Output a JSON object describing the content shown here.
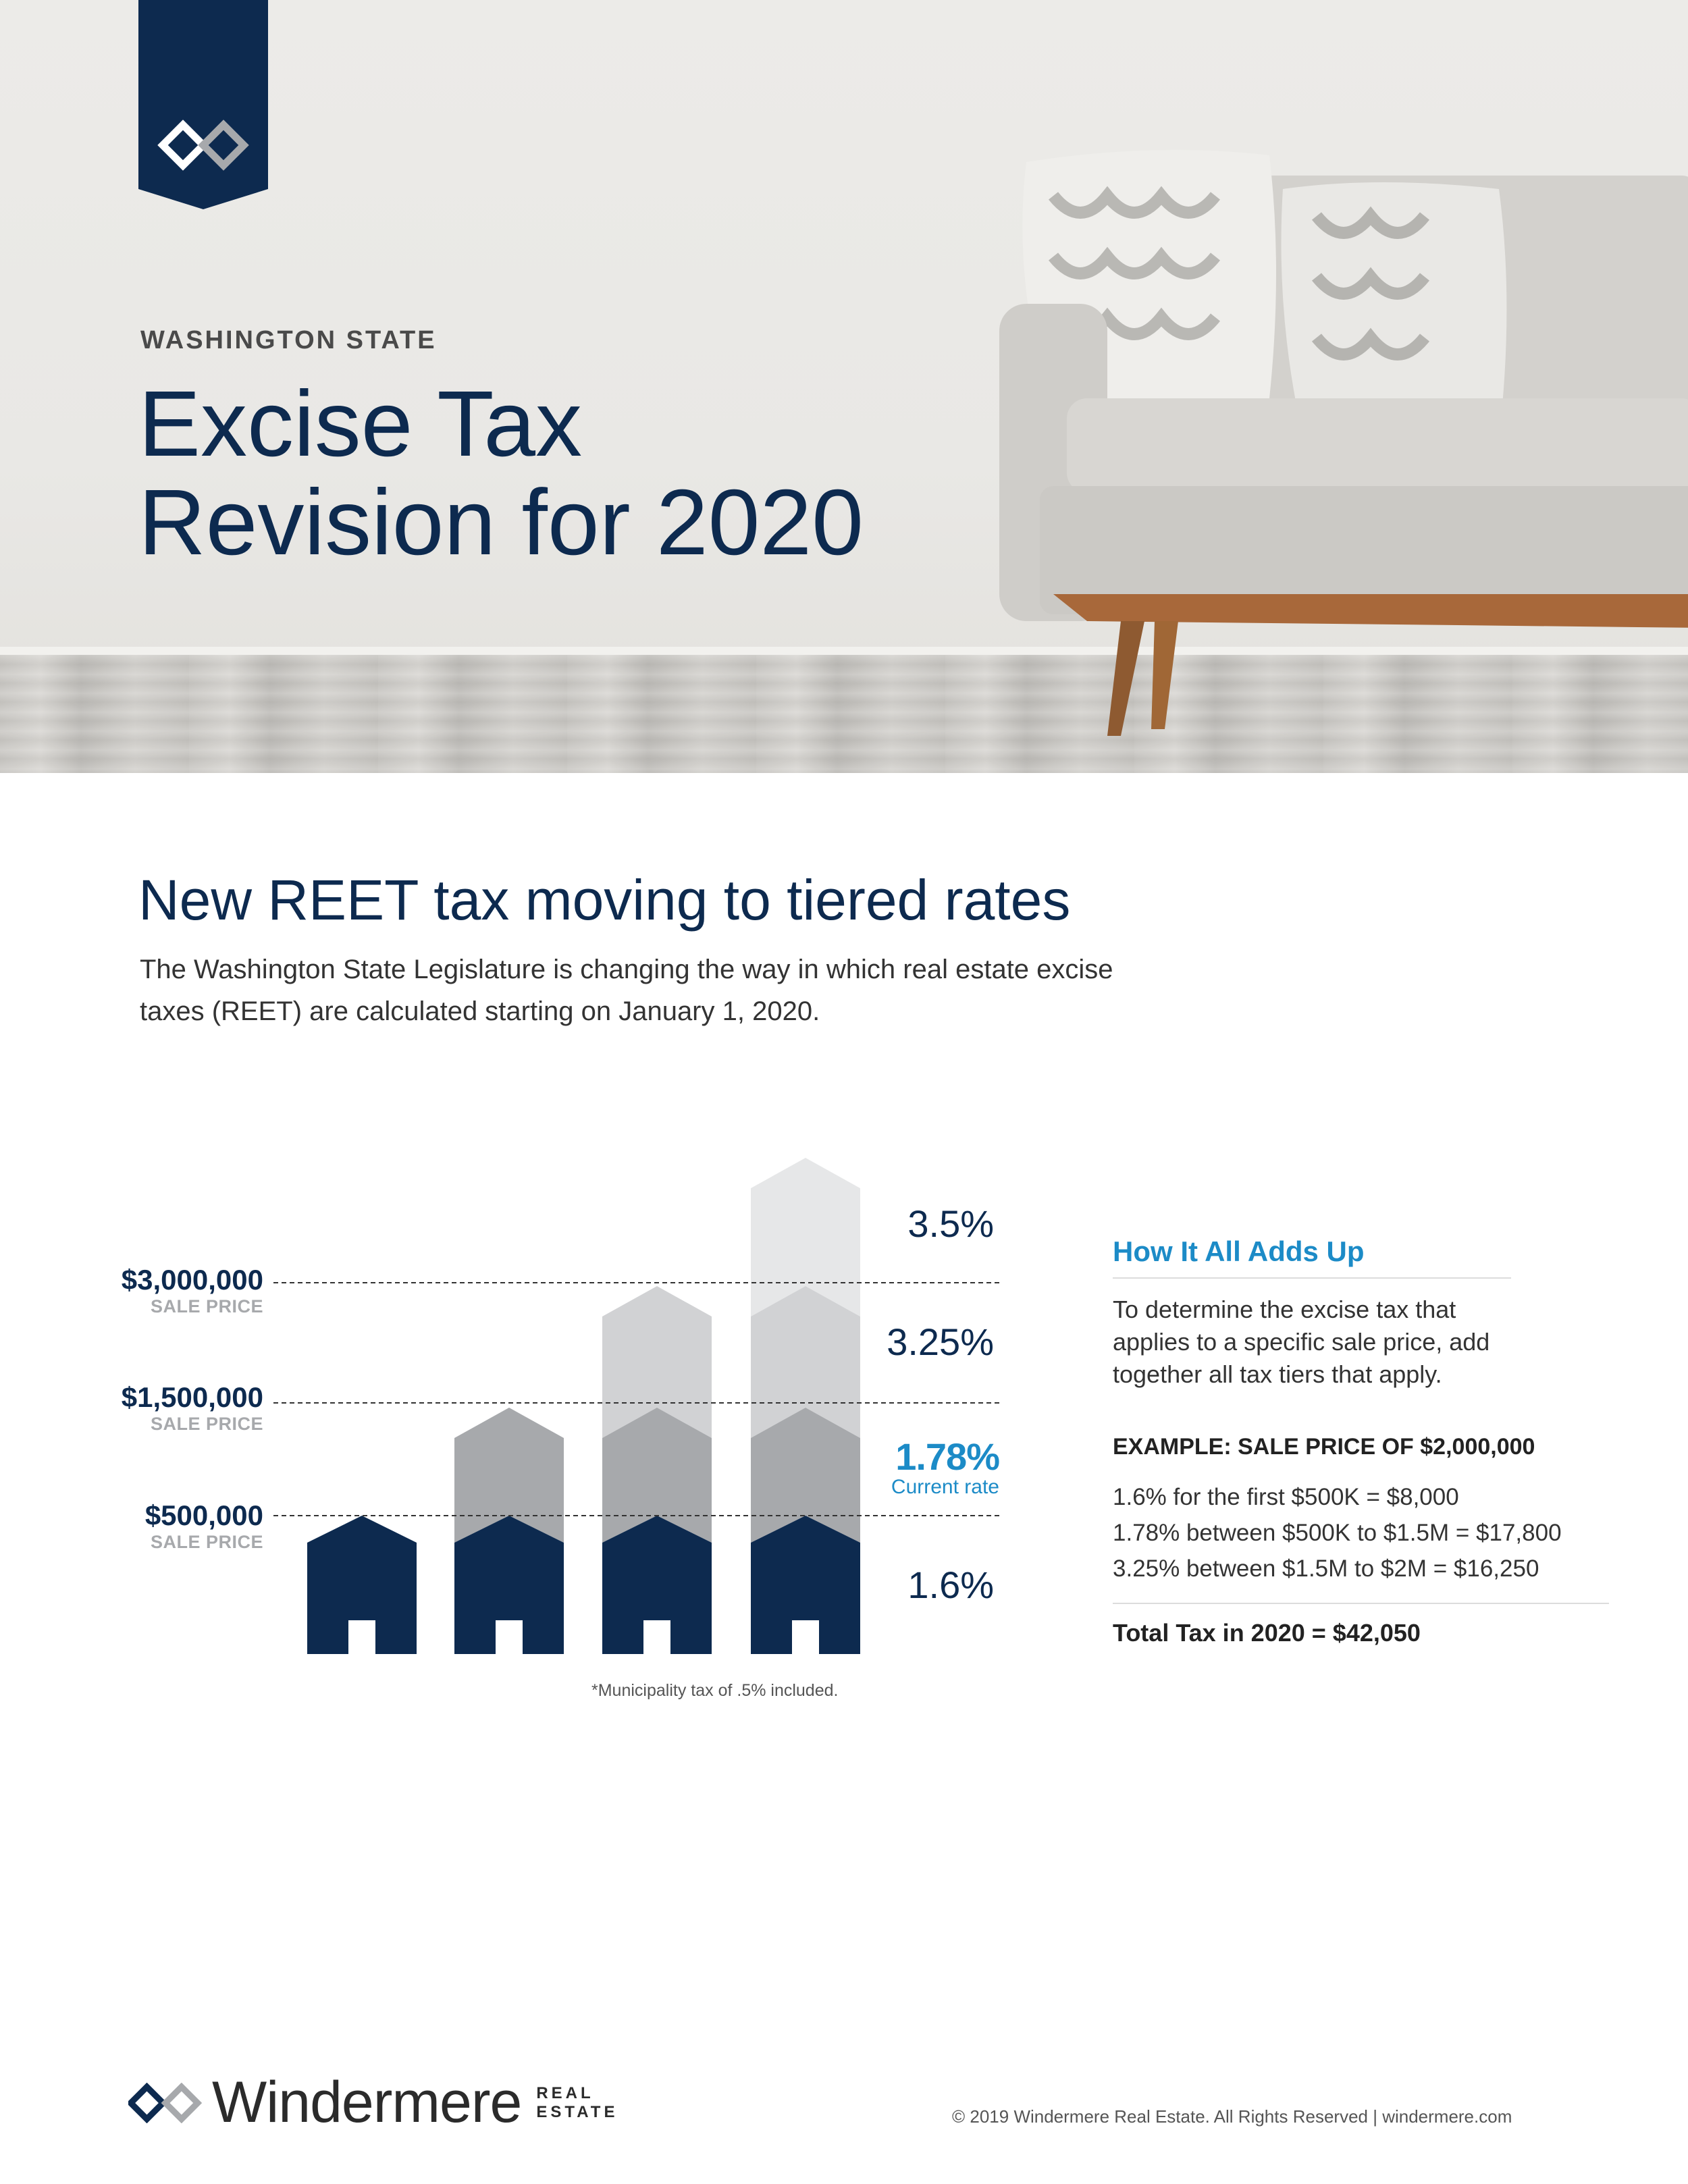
{
  "header": {
    "eyebrow": "WASHINGTON STATE",
    "title_line1": "Excise Tax",
    "title_line2": "Revision for 2020"
  },
  "intro": {
    "heading": "New REET tax moving to tiered rates",
    "body": "The Washington State Legislature is changing the way in which real estate excise taxes (REET) are calculated starting on January 1, 2020."
  },
  "chart": {
    "price_levels": [
      {
        "amount": "$3,000,000",
        "label": "SALE PRICE"
      },
      {
        "amount": "$1,500,000",
        "label": "SALE PRICE"
      },
      {
        "amount": "$500,000",
        "label": "SALE PRICE"
      }
    ],
    "rates": {
      "tier4": "3.5%",
      "tier3": "3.25%",
      "tier2": "1.78%",
      "tier2_note": "Current rate",
      "tier1": "1.6%"
    },
    "footnote": "*Municipality tax of .5% included.",
    "colors": {
      "tier1": "#0d2a4f",
      "tier2": "#a7a9ac",
      "tier3": "#d1d2d4",
      "tier4": "#e6e7e8",
      "accent": "#1c8bc7"
    }
  },
  "sidebar": {
    "heading": "How It All Adds Up",
    "description": "To determine the excise tax that applies to a specific sale price, add together all tax tiers that apply.",
    "example_title": "EXAMPLE: SALE PRICE OF $2,000,000",
    "lines": [
      "1.6% for the first $500K = $8,000",
      "1.78% between $500K to $1.5M = $17,800",
      "3.25% between $1.5M to $2M = $16,250"
    ],
    "total": "Total Tax in 2020 = $42,050"
  },
  "footer": {
    "brand": "Windermere",
    "brand_sub_1": "REAL",
    "brand_sub_2": "ESTATE",
    "copyright": "© 2019 Windermere Real Estate. All Rights Reserved | windermere.com"
  }
}
